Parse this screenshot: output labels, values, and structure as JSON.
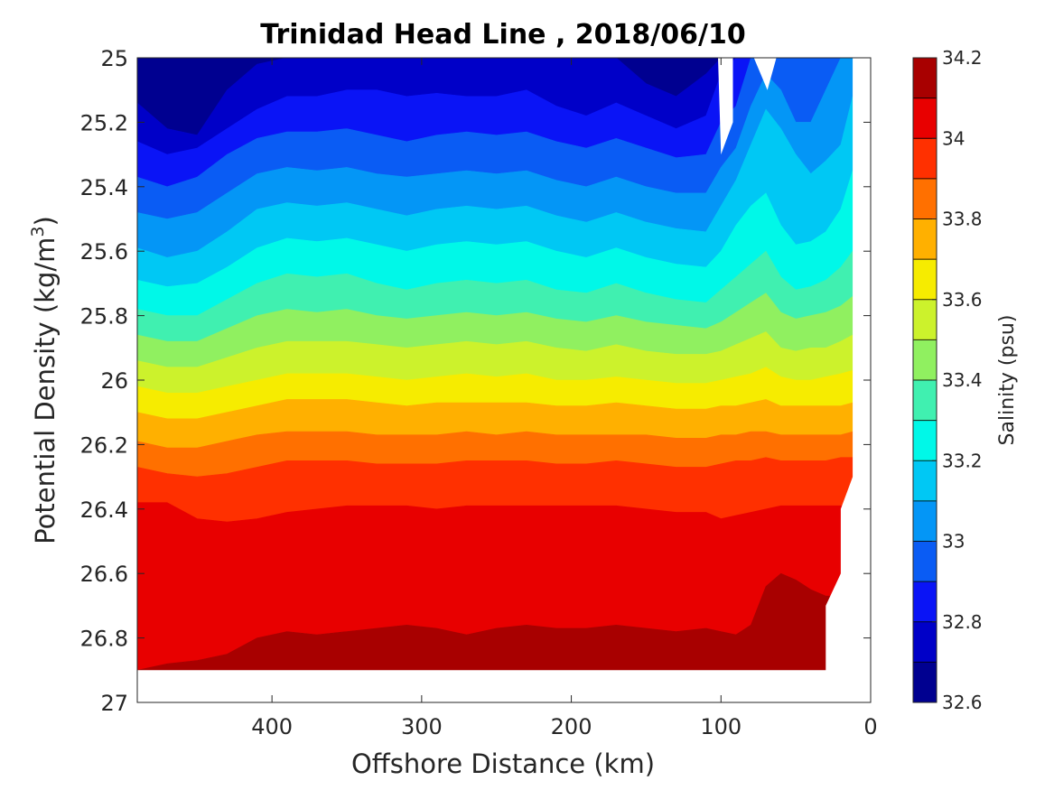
{
  "chart_data": {
    "type": "heatmap",
    "subtype": "filled-contour",
    "title": "Trinidad Head Line , 2018/06/10",
    "xlabel": "Offshore Distance (km)",
    "ylabel_main": "Potential Density (kg/m",
    "ylabel_sup": "3",
    "ylabel_close": ")",
    "x_reversed": true,
    "y_reversed": true,
    "xlim": [
      490,
      0
    ],
    "ylim": [
      25,
      27
    ],
    "xticks": [
      400,
      300,
      200,
      100,
      0
    ],
    "xtick_labels": [
      "400",
      "300",
      "200",
      "100",
      "0"
    ],
    "yticks": [
      25,
      25.2,
      25.4,
      25.6,
      25.8,
      26,
      26.2,
      26.4,
      26.6,
      26.8,
      27
    ],
    "ytick_labels": [
      "25",
      "25.2",
      "25.4",
      "25.6",
      "25.8",
      "26",
      "26.2",
      "26.4",
      "26.6",
      "26.8",
      "27"
    ],
    "grid": false,
    "colorbar": {
      "label": "Salinity (psu)",
      "range": [
        32.6,
        34.2
      ],
      "step": 0.1,
      "ticks": [
        32.6,
        32.8,
        33,
        33.2,
        33.4,
        33.6,
        33.8,
        34,
        34.2
      ],
      "tick_labels": [
        "32.6",
        "32.8",
        "33",
        "33.2",
        "33.4",
        "33.6",
        "33.8",
        "34",
        "34.2"
      ],
      "level_colors": [
        "#000090",
        "#0000C8",
        "#0A14F6",
        "#0A5CF4",
        "#0496F6",
        "#00C8F4",
        "#00F8E8",
        "#40F0B0",
        "#90F060",
        "#CCF22C",
        "#F6EC00",
        "#FFB000",
        "#FF7000",
        "#FF3000",
        "#E80000",
        "#A80000"
      ]
    },
    "contour_levels": [
      32.7,
      32.8,
      32.9,
      33.0,
      33.1,
      33.2,
      33.3,
      33.4,
      33.5,
      33.6,
      33.7,
      33.8,
      33.9,
      34.0,
      34.1
    ],
    "x": [
      490,
      470,
      450,
      430,
      410,
      390,
      370,
      350,
      330,
      310,
      290,
      270,
      250,
      230,
      210,
      190,
      170,
      150,
      130,
      110,
      100,
      90,
      80,
      70,
      60,
      50,
      40,
      30,
      20,
      12
    ],
    "isopycnal_boundaries": [
      {
        "between": [
          32.7,
          32.8
        ],
        "sigma": [
          25.14,
          25.22,
          25.24,
          25.1,
          25.02,
          25.0,
          25.0,
          25.0,
          25.0,
          25.0,
          25.0,
          25.0,
          25.0,
          25.0,
          25.0,
          25.0,
          25.0,
          25.08,
          25.12,
          25.05,
          25.0,
          25.0,
          25.0,
          25.0,
          25.0,
          25.0,
          25.0,
          25.0,
          25.0,
          25.0
        ]
      },
      {
        "between": [
          32.8,
          32.9
        ],
        "sigma": [
          25.26,
          25.3,
          25.28,
          25.22,
          25.16,
          25.12,
          25.12,
          25.1,
          25.1,
          25.12,
          25.11,
          25.12,
          25.12,
          25.1,
          25.15,
          25.18,
          25.14,
          25.18,
          25.22,
          25.18,
          25.05,
          25.0,
          25.0,
          25.0,
          25.0,
          25.0,
          25.0,
          25.0,
          25.0,
          25.0
        ]
      },
      {
        "between": [
          32.9,
          33.0
        ],
        "sigma": [
          25.37,
          25.4,
          25.37,
          25.3,
          25.25,
          25.23,
          25.23,
          25.22,
          25.24,
          25.26,
          25.24,
          25.23,
          25.24,
          25.23,
          25.26,
          25.28,
          25.25,
          25.28,
          25.31,
          25.3,
          25.2,
          25.15,
          25.0,
          25.0,
          25.0,
          25.0,
          25.0,
          25.0,
          25.0,
          25.0
        ]
      },
      {
        "between": [
          33.0,
          33.1
        ],
        "sigma": [
          25.48,
          25.5,
          25.48,
          25.42,
          25.36,
          25.34,
          25.35,
          25.34,
          25.36,
          25.37,
          25.36,
          25.35,
          25.36,
          25.35,
          25.38,
          25.4,
          25.37,
          25.4,
          25.42,
          25.42,
          25.34,
          25.28,
          25.15,
          25.05,
          25.1,
          25.2,
          25.2,
          25.1,
          25.0,
          25.0
        ]
      },
      {
        "between": [
          33.1,
          33.2
        ],
        "sigma": [
          25.59,
          25.62,
          25.6,
          25.54,
          25.47,
          25.45,
          25.46,
          25.45,
          25.47,
          25.49,
          25.47,
          25.46,
          25.47,
          25.46,
          25.49,
          25.51,
          25.48,
          25.51,
          25.53,
          25.54,
          25.46,
          25.38,
          25.27,
          25.16,
          25.22,
          25.3,
          25.36,
          25.32,
          25.27,
          25.12
        ]
      },
      {
        "between": [
          33.2,
          33.3
        ],
        "sigma": [
          25.69,
          25.71,
          25.7,
          25.65,
          25.59,
          25.56,
          25.57,
          25.56,
          25.58,
          25.6,
          25.58,
          25.57,
          25.58,
          25.57,
          25.6,
          25.62,
          25.59,
          25.62,
          25.64,
          25.65,
          25.6,
          25.52,
          25.46,
          25.42,
          25.52,
          25.58,
          25.57,
          25.54,
          25.47,
          25.35
        ]
      },
      {
        "between": [
          33.3,
          33.4
        ],
        "sigma": [
          25.78,
          25.8,
          25.8,
          25.75,
          25.7,
          25.67,
          25.68,
          25.67,
          25.7,
          25.72,
          25.7,
          25.69,
          25.7,
          25.69,
          25.72,
          25.73,
          25.7,
          25.73,
          25.75,
          25.76,
          25.72,
          25.68,
          25.64,
          25.6,
          25.68,
          25.72,
          25.71,
          25.69,
          25.65,
          25.6
        ]
      },
      {
        "between": [
          33.4,
          33.5
        ],
        "sigma": [
          25.86,
          25.88,
          25.88,
          25.84,
          25.8,
          25.78,
          25.79,
          25.78,
          25.8,
          25.81,
          25.8,
          25.79,
          25.8,
          25.79,
          25.81,
          25.82,
          25.8,
          25.82,
          25.83,
          25.84,
          25.82,
          25.79,
          25.76,
          25.73,
          25.79,
          25.81,
          25.8,
          25.79,
          25.77,
          25.74
        ]
      },
      {
        "between": [
          33.5,
          33.6
        ],
        "sigma": [
          25.94,
          25.96,
          25.96,
          25.93,
          25.9,
          25.88,
          25.88,
          25.88,
          25.89,
          25.9,
          25.89,
          25.88,
          25.89,
          25.88,
          25.9,
          25.91,
          25.89,
          25.91,
          25.92,
          25.92,
          25.91,
          25.89,
          25.87,
          25.85,
          25.9,
          25.91,
          25.9,
          25.9,
          25.88,
          25.86
        ]
      },
      {
        "between": [
          33.6,
          33.7
        ],
        "sigma": [
          26.02,
          26.04,
          26.04,
          26.02,
          26.0,
          25.98,
          25.98,
          25.98,
          25.99,
          26.0,
          25.99,
          25.98,
          25.99,
          25.98,
          26.0,
          26.0,
          25.99,
          26.0,
          26.01,
          26.01,
          26.0,
          25.99,
          25.98,
          25.96,
          25.99,
          26.0,
          26.0,
          25.99,
          25.98,
          25.97
        ]
      },
      {
        "between": [
          33.7,
          33.8
        ],
        "sigma": [
          26.1,
          26.12,
          26.12,
          26.1,
          26.08,
          26.06,
          26.06,
          26.06,
          26.07,
          26.08,
          26.07,
          26.07,
          26.07,
          26.07,
          26.08,
          26.08,
          26.07,
          26.08,
          26.09,
          26.09,
          26.08,
          26.08,
          26.07,
          26.06,
          26.08,
          26.08,
          26.08,
          26.08,
          26.08,
          26.07
        ]
      },
      {
        "between": [
          33.8,
          33.9
        ],
        "sigma": [
          26.19,
          26.21,
          26.21,
          26.19,
          26.17,
          26.16,
          26.16,
          26.16,
          26.17,
          26.17,
          26.17,
          26.16,
          26.17,
          26.16,
          26.17,
          26.17,
          26.17,
          26.17,
          26.18,
          26.18,
          26.17,
          26.17,
          26.16,
          26.16,
          26.17,
          26.17,
          26.17,
          26.17,
          26.17,
          26.16
        ]
      },
      {
        "between": [
          33.9,
          34.0
        ],
        "sigma": [
          26.27,
          26.29,
          26.3,
          26.29,
          26.27,
          26.25,
          26.25,
          26.25,
          26.26,
          26.26,
          26.26,
          26.25,
          26.25,
          26.25,
          26.26,
          26.26,
          26.25,
          26.26,
          26.27,
          26.27,
          26.26,
          26.25,
          26.25,
          26.24,
          26.25,
          26.25,
          26.25,
          26.25,
          26.24,
          26.24
        ]
      },
      {
        "between": [
          34.0,
          34.1
        ],
        "sigma": [
          26.38,
          26.38,
          26.43,
          26.44,
          26.43,
          26.41,
          26.4,
          26.39,
          26.39,
          26.39,
          26.4,
          26.39,
          26.39,
          26.39,
          26.39,
          26.39,
          26.39,
          26.4,
          26.41,
          26.41,
          26.43,
          26.42,
          26.41,
          26.4,
          26.39,
          26.39,
          26.39,
          26.39,
          26.39,
          26.39
        ]
      },
      {
        "between": [
          34.1,
          34.2
        ],
        "sigma": [
          26.9,
          26.88,
          26.87,
          26.85,
          26.8,
          26.78,
          26.79,
          26.78,
          26.77,
          26.76,
          26.77,
          26.79,
          26.77,
          26.76,
          26.77,
          26.77,
          26.76,
          26.77,
          26.78,
          26.77,
          26.78,
          26.79,
          26.76,
          26.64,
          26.6,
          26.62,
          26.65,
          26.67,
          26.67,
          26.67
        ]
      }
    ],
    "deepest_patch": {
      "level": 34.15,
      "x": [
        78,
        70,
        60,
        50,
        40,
        30
      ],
      "sigma_top": [
        26.9,
        26.88,
        26.84,
        26.85,
        26.88,
        26.89
      ]
    },
    "data_bottom": {
      "x": [
        490,
        30,
        30,
        20,
        20,
        12
      ],
      "sigma": [
        26.9,
        26.9,
        26.7,
        26.6,
        26.4,
        26.3
      ]
    },
    "missing_regions": [
      {
        "x": [
          102,
          92,
          92,
          100
        ],
        "sigma": [
          25.0,
          25.0,
          25.2,
          25.3
        ]
      },
      {
        "x": [
          78,
          63,
          69
        ],
        "sigma": [
          25.0,
          25.0,
          25.1
        ]
      }
    ]
  }
}
